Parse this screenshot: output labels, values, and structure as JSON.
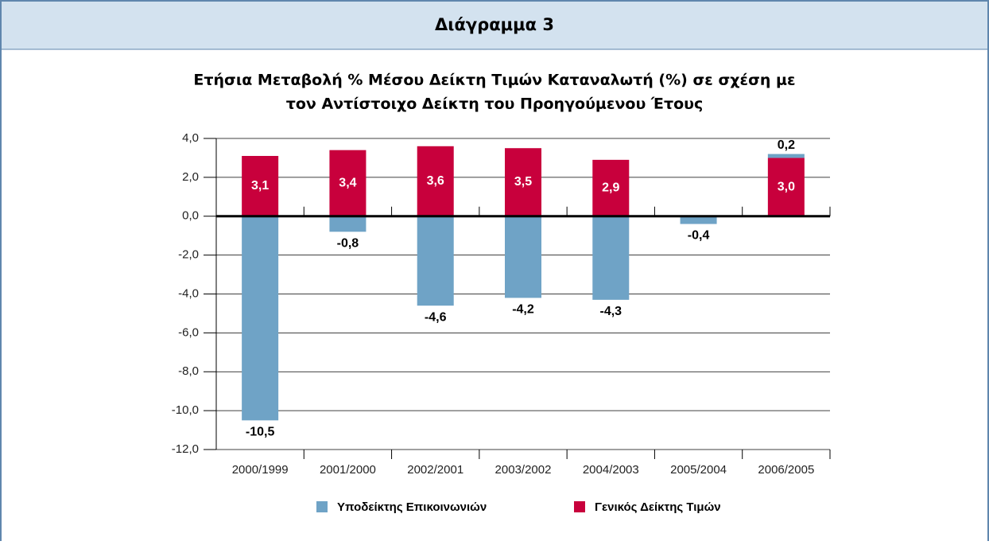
{
  "header": "Διάγραμμα 3",
  "chart_data": {
    "type": "stacked-bar",
    "title": [
      "Ετήσια Μεταβολή % Μέσου Δείκτη Τιμών Καταναλωτή (%) σε σχέση με",
      "τον Αντίστοιχο Δείκτη του Προηγούμενου Έτους"
    ],
    "categories": [
      "2000/1999",
      "2001/2000",
      "2002/2001",
      "2003/2002",
      "2004/2003",
      "2005/2004",
      "2006/2005"
    ],
    "series": [
      {
        "name": "Υποδείκτης Επικοινωνιών",
        "color": "#6fa3c6",
        "values": [
          -10.5,
          -0.8,
          -4.6,
          -4.2,
          -4.3,
          -0.4,
          0.2
        ],
        "value_labels": [
          "-10,5",
          "-0,8",
          "-4,6",
          "-4,2",
          "-4,3",
          "-0,4",
          "0,2"
        ]
      },
      {
        "name": "Γενικός Δείκτης Τιμών",
        "color": "#c8003c",
        "values": [
          3.1,
          3.4,
          3.6,
          3.5,
          2.9,
          null,
          3.0
        ],
        "value_labels": [
          "3,1",
          "3,4",
          "3,6",
          "3,5",
          "2,9",
          null,
          "3,0"
        ]
      }
    ],
    "ylim": [
      -12,
      4
    ],
    "yticks": [
      {
        "value": -12,
        "label": "-12,0"
      },
      {
        "value": -10,
        "label": "-10,0"
      },
      {
        "value": -8,
        "label": "-8,0"
      },
      {
        "value": -6,
        "label": "-6,0"
      },
      {
        "value": -4,
        "label": "-4,0"
      },
      {
        "value": -2,
        "label": "-2,0"
      },
      {
        "value": 0,
        "label": "0,0"
      },
      {
        "value": 2,
        "label": "2,0"
      },
      {
        "value": 4,
        "label": "4,0"
      }
    ],
    "grid": true
  }
}
